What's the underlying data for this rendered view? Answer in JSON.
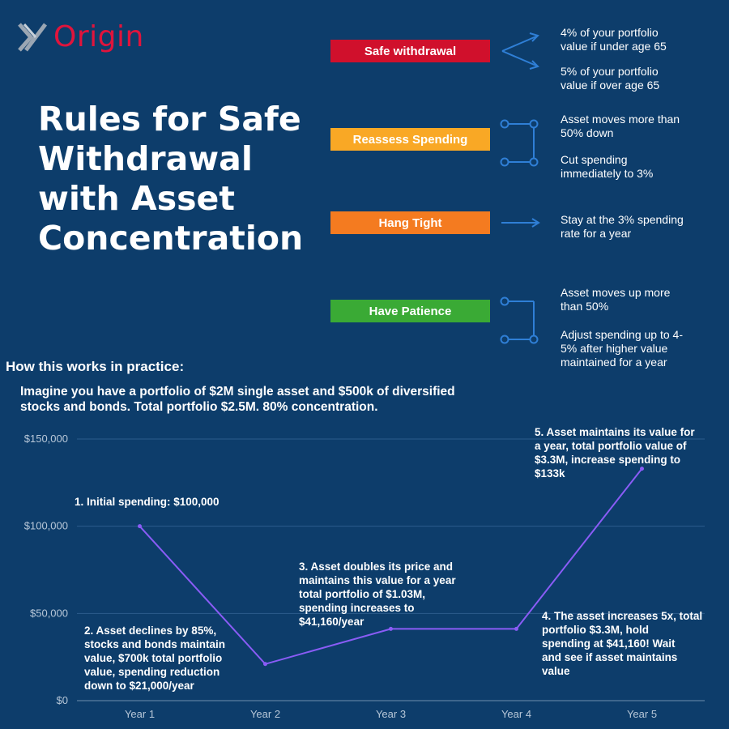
{
  "brand": {
    "logo_text": "Origin",
    "logo_mark": "x-logo-mark"
  },
  "title": [
    "Rules for Safe",
    "Withdrawal",
    "with Asset",
    "Concentration"
  ],
  "rules": [
    {
      "label": "Safe withdrawal",
      "color": "#d0102c",
      "notes": [
        [
          "4% of your portfolio",
          "value if under age 65"
        ],
        [
          "5% of your portfolio",
          "value if over age 65"
        ]
      ]
    },
    {
      "label": "Reassess Spending",
      "color": "#f9a825",
      "notes": [
        [
          "Asset moves more than",
          "50% down"
        ],
        [
          "Cut spending",
          "immediately to 3%"
        ]
      ]
    },
    {
      "label": "Hang Tight",
      "color": "#f47b20",
      "notes": [
        [
          "Stay at the 3% spending",
          "rate for a year"
        ]
      ]
    },
    {
      "label": "Have Patience",
      "color": "#3aaa35",
      "notes": [
        [
          "Asset moves up more",
          "than 50%"
        ],
        [
          "Adjust spending up to 4-",
          "5% after higher value",
          "maintained for a year"
        ]
      ]
    }
  ],
  "connector_color": "#2f7fd6",
  "practice": {
    "heading": "How this works in practice:",
    "intro": "Imagine you have a portfolio of $2M single asset and $500k of diversified stocks and bonds. Total portfolio $2.5M. 80% concentration."
  },
  "chart_data": {
    "type": "line",
    "categories": [
      "Year 1",
      "Year 2",
      "Year 3",
      "Year 4",
      "Year 5"
    ],
    "values": [
      100000,
      21000,
      41160,
      41160,
      133000
    ],
    "y_ticks": [
      "$0",
      "$50,000",
      "$100,000",
      "$150,000"
    ],
    "ylim": [
      0,
      150000
    ],
    "grid": true,
    "line_color": "#8a5cf6",
    "annotations": [
      {
        "point": 0,
        "lines": [
          "1. Initial spending: $100,000"
        ]
      },
      {
        "point": 1,
        "lines": [
          "2. Asset declines by 85%,",
          "stocks and bonds maintain",
          "value, $700k total portfolio",
          "value, spending reduction",
          "down to $21,000/year"
        ]
      },
      {
        "point": 2,
        "lines": [
          "3. Asset doubles its price and",
          "maintains this value for a year",
          "total portfolio of $1.03M,",
          "spending increases to",
          "$41,160/year"
        ]
      },
      {
        "point": 3,
        "lines": [
          "4. The asset increases 5x, total",
          "portfolio $3.3M, hold",
          "spending at $41,160! Wait",
          "and see if asset maintains",
          "value"
        ]
      },
      {
        "point": 4,
        "lines": [
          "5. Asset maintains its value for",
          "a year, total portfolio value of",
          "$3.3M, increase spending to",
          "$133k"
        ]
      }
    ]
  }
}
